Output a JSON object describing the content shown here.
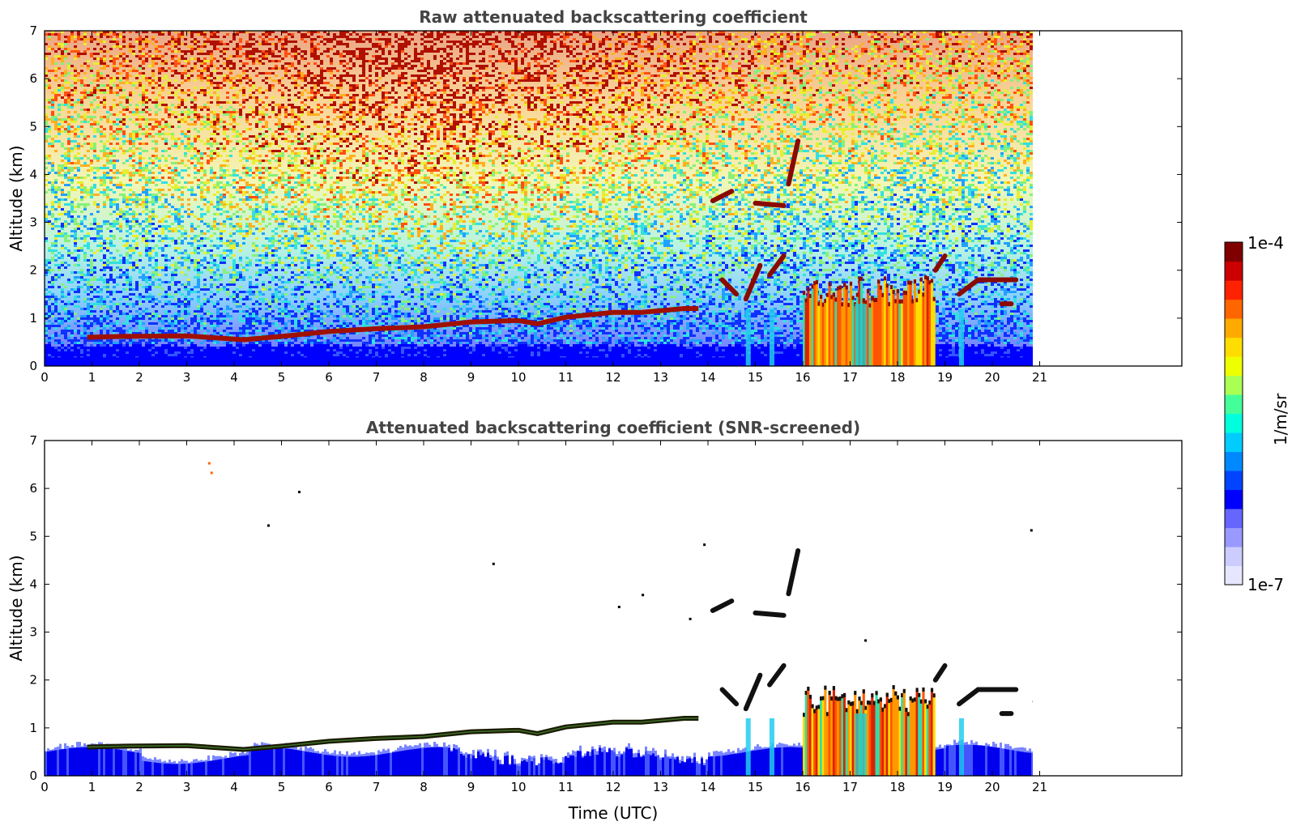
{
  "chart_data": [
    {
      "type": "heatmap",
      "title": "Raw attenuated backscattering coefficient",
      "xlabel": "",
      "ylabel": "Altitude (km)",
      "xlim": [
        0,
        24
      ],
      "ylim": [
        0,
        7
      ],
      "x_ticks": [
        "0",
        "1",
        "2",
        "3",
        "4",
        "5",
        "6",
        "7",
        "8",
        "9",
        "10",
        "11",
        "12",
        "13",
        "14",
        "15",
        "16",
        "17",
        "18",
        "19",
        "20",
        "21"
      ],
      "y_ticks": [
        "0",
        "1",
        "2",
        "3",
        "4",
        "5",
        "6",
        "7"
      ],
      "data_end_time": 21,
      "noise": "dense",
      "boundary_layer_top_km": [
        [
          0.9,
          0.6
        ],
        [
          1.7,
          0.62
        ],
        [
          3.0,
          0.63
        ],
        [
          4.2,
          0.55
        ],
        [
          5.0,
          0.62
        ],
        [
          6.0,
          0.72
        ],
        [
          7.0,
          0.78
        ],
        [
          8.0,
          0.82
        ],
        [
          9.0,
          0.92
        ],
        [
          10.0,
          0.95
        ],
        [
          10.4,
          0.88
        ],
        [
          11.0,
          1.02
        ],
        [
          12.0,
          1.12
        ],
        [
          12.6,
          1.12
        ],
        [
          13.5,
          1.2
        ],
        [
          13.8,
          1.2
        ]
      ],
      "cloud_segments": [
        {
          "t": [
            14.3,
            14.6
          ],
          "alt": [
            1.8,
            1.5
          ]
        },
        {
          "t": [
            14.8,
            15.1
          ],
          "alt": [
            1.4,
            2.1
          ]
        },
        {
          "t": [
            15.3,
            15.6
          ],
          "alt": [
            1.9,
            2.3
          ]
        },
        {
          "t": [
            14.1,
            14.5
          ],
          "alt": [
            3.45,
            3.65
          ]
        },
        {
          "t": [
            15.0,
            15.6
          ],
          "alt": [
            3.4,
            3.35
          ]
        },
        {
          "t": [
            15.7,
            15.9
          ],
          "alt": [
            3.8,
            4.7
          ]
        },
        {
          "t": [
            18.8,
            19.0
          ],
          "alt": [
            2.0,
            2.3
          ]
        },
        {
          "t": [
            19.3,
            19.7
          ],
          "alt": [
            1.5,
            1.8
          ]
        },
        {
          "t": [
            19.7,
            20.5
          ],
          "alt": [
            1.8,
            1.8
          ]
        },
        {
          "t": [
            20.2,
            20.4
          ],
          "alt": [
            1.3,
            1.3
          ]
        },
        {
          "t": [
            20.9,
            21.0
          ],
          "alt": [
            1.55,
            1.65
          ]
        }
      ],
      "precipitation_block": {
        "t": [
          16.0,
          18.75
        ],
        "cloud_base_km": 1.3,
        "cloud_top_km": 1.9
      },
      "fall_streaks_t": [
        14.85,
        15.35,
        19.35
      ]
    },
    {
      "type": "heatmap",
      "title": "Attenuated backscattering coefficient (SNR-screened)",
      "xlabel": "Time (UTC)",
      "ylabel": "Altitude (km)",
      "xlim": [
        0,
        24
      ],
      "ylim": [
        0,
        7
      ],
      "x_ticks": [
        "0",
        "1",
        "2",
        "3",
        "4",
        "5",
        "6",
        "7",
        "8",
        "9",
        "10",
        "11",
        "12",
        "13",
        "14",
        "15",
        "16",
        "17",
        "18",
        "19",
        "20",
        "21"
      ],
      "y_ticks": [
        "0",
        "1",
        "2",
        "3",
        "4",
        "5",
        "6",
        "7"
      ],
      "data_end_time": 21,
      "noise": "screened",
      "surface_layer_top_km": 0.75,
      "boundary_layer_top_km": [
        [
          0.9,
          0.6
        ],
        [
          1.7,
          0.62
        ],
        [
          3.0,
          0.63
        ],
        [
          4.2,
          0.55
        ],
        [
          5.0,
          0.62
        ],
        [
          6.0,
          0.72
        ],
        [
          7.0,
          0.78
        ],
        [
          8.0,
          0.82
        ],
        [
          9.0,
          0.92
        ],
        [
          10.0,
          0.95
        ],
        [
          10.4,
          0.88
        ],
        [
          11.0,
          1.02
        ],
        [
          12.0,
          1.12
        ],
        [
          12.6,
          1.12
        ],
        [
          13.5,
          1.2
        ],
        [
          13.8,
          1.2
        ]
      ],
      "cloud_segments": [
        {
          "t": [
            14.3,
            14.6
          ],
          "alt": [
            1.8,
            1.5
          ]
        },
        {
          "t": [
            14.8,
            15.1
          ],
          "alt": [
            1.4,
            2.1
          ]
        },
        {
          "t": [
            15.3,
            15.6
          ],
          "alt": [
            1.9,
            2.3
          ]
        },
        {
          "t": [
            14.1,
            14.5
          ],
          "alt": [
            3.45,
            3.65
          ]
        },
        {
          "t": [
            15.0,
            15.6
          ],
          "alt": [
            3.4,
            3.35
          ]
        },
        {
          "t": [
            15.7,
            15.9
          ],
          "alt": [
            3.8,
            4.7
          ]
        },
        {
          "t": [
            18.8,
            19.0
          ],
          "alt": [
            2.0,
            2.3
          ]
        },
        {
          "t": [
            19.3,
            19.7
          ],
          "alt": [
            1.5,
            1.8
          ]
        },
        {
          "t": [
            19.7,
            20.5
          ],
          "alt": [
            1.8,
            1.8
          ]
        },
        {
          "t": [
            20.2,
            20.4
          ],
          "alt": [
            1.3,
            1.3
          ]
        },
        {
          "t": [
            20.9,
            21.0
          ],
          "alt": [
            1.55,
            1.65
          ]
        }
      ],
      "precipitation_block": {
        "t": [
          16.0,
          18.75
        ],
        "cloud_base_km": 1.3,
        "cloud_top_km": 1.9
      },
      "fall_streaks_t": [
        14.85,
        15.35,
        19.35
      ]
    }
  ],
  "colorbar": {
    "max_label": "1e-4",
    "min_label": "1e-7",
    "unit_label": "1/m/sr",
    "colors": [
      "#e6e6ff",
      "#ccccff",
      "#9999ff",
      "#6666ff",
      "#0000ff",
      "#0044ff",
      "#0088ff",
      "#00ccff",
      "#00ffdd",
      "#44ff99",
      "#aaff55",
      "#eeff00",
      "#ffdd00",
      "#ffaa00",
      "#ff6600",
      "#ff2200",
      "#cc0000",
      "#800000"
    ]
  }
}
